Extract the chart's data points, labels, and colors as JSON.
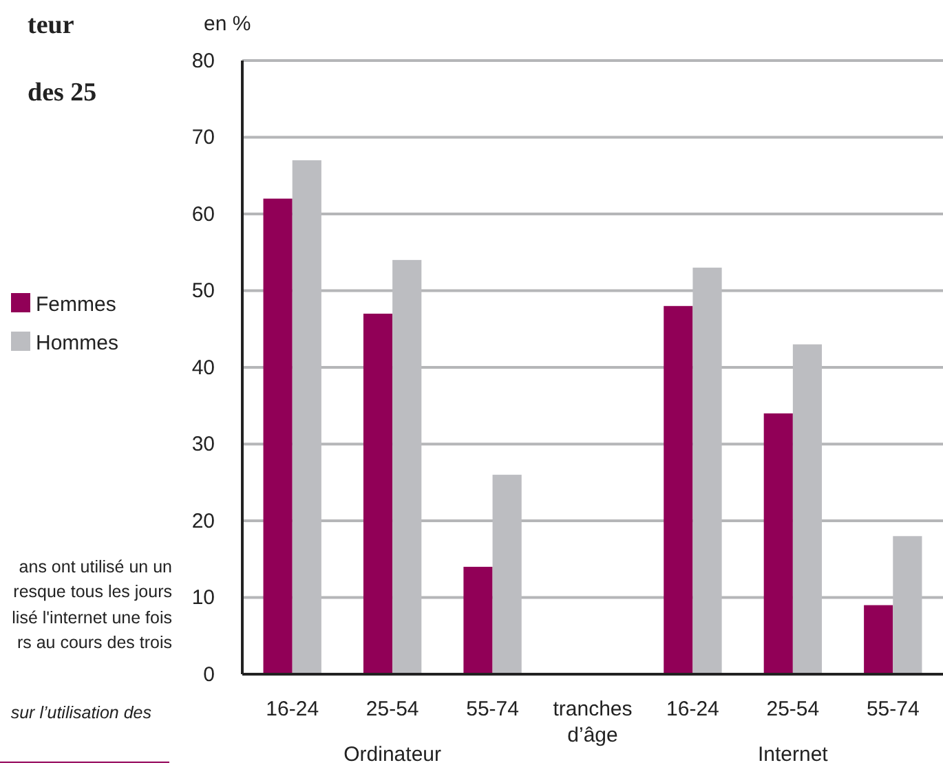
{
  "chart_data": {
    "type": "bar",
    "ylabel": "en %",
    "categories": [
      "16-24",
      "25-54",
      "55-74",
      "tranches\nd’âge",
      "16-24",
      "25-54",
      "55-74"
    ],
    "series": [
      {
        "name": "Femmes",
        "color": "#910057",
        "values": [
          62,
          47,
          14,
          null,
          48,
          34,
          9
        ]
      },
      {
        "name": "Hommes",
        "color": "#bcbdc1",
        "values": [
          67,
          54,
          26,
          null,
          53,
          43,
          18
        ]
      }
    ],
    "ylim": [
      0,
      80
    ],
    "yticks": [
      0,
      10,
      20,
      30,
      40,
      50,
      60,
      70,
      80
    ],
    "grid": "y",
    "legend": "left",
    "annotations": [
      "teur",
      "des 25",
      "ans ont utilisé un un",
      "resque tous les jours",
      "lisé l'internet une fois",
      "rs au cours des trois",
      "sur l’utilisation des",
      "Ordinateur",
      "Internet"
    ]
  }
}
